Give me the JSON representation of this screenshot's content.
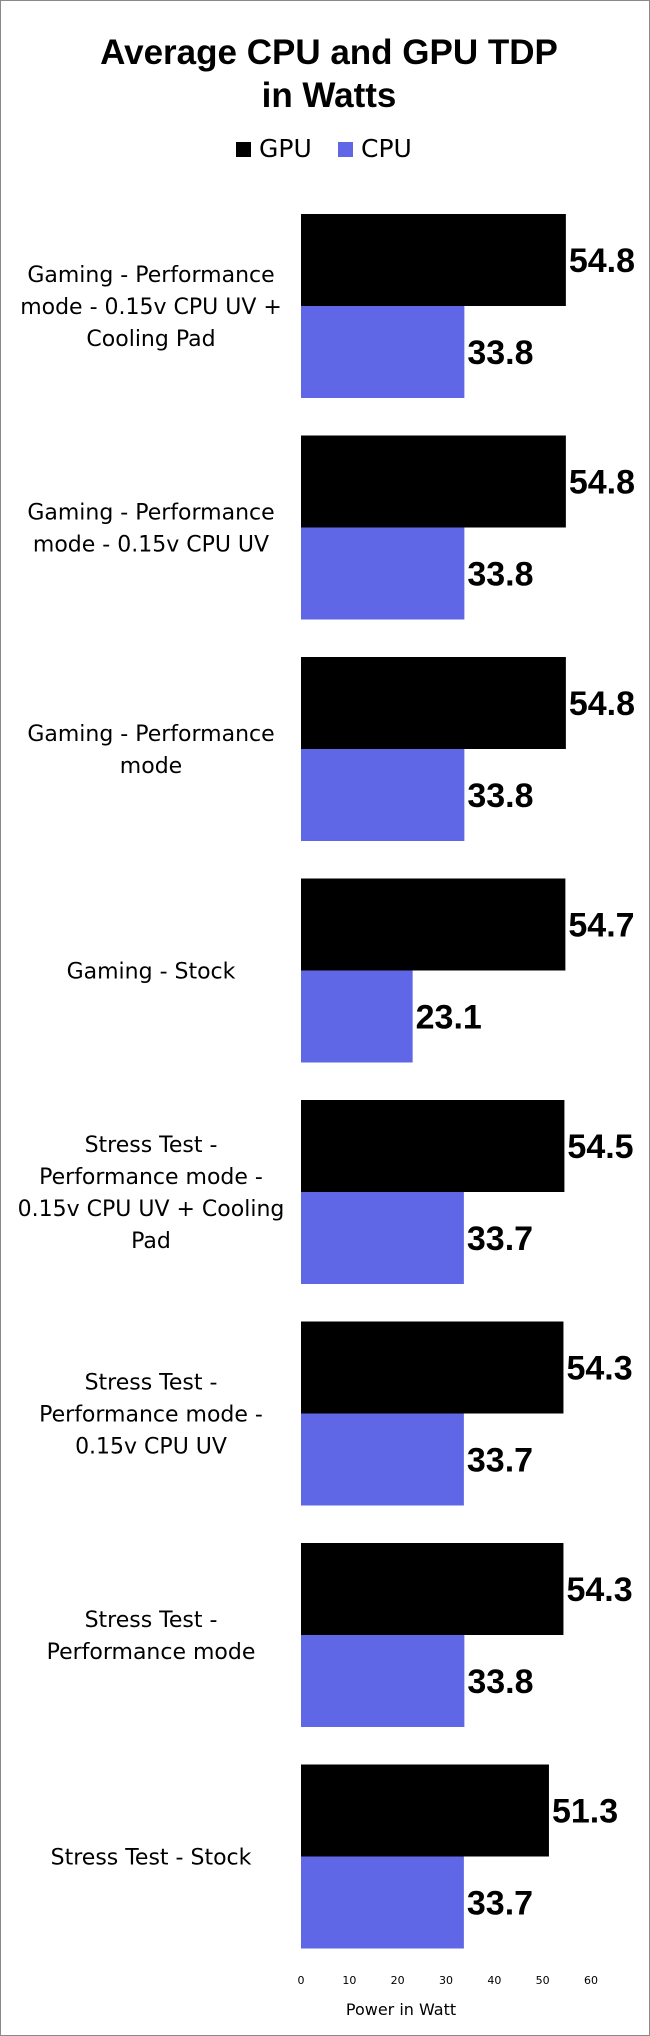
{
  "chart_data": {
    "type": "bar",
    "orientation": "horizontal",
    "title_lines": [
      "Average CPU and GPU TDP",
      "in Watts"
    ],
    "xlabel": "Power in Watt",
    "ylabel": "",
    "xlim": [
      0,
      60
    ],
    "xticks": [
      0,
      10,
      20,
      30,
      40,
      50,
      60
    ],
    "grid": false,
    "legend_position": "top",
    "categories": [
      [
        "Gaming - Performance",
        "mode - 0.15v CPU UV +",
        "Cooling Pad"
      ],
      [
        "Gaming - Performance",
        "mode - 0.15v CPU UV"
      ],
      [
        "Gaming - Performance",
        "mode"
      ],
      [
        "Gaming - Stock"
      ],
      [
        "Stress Test -",
        "Performance mode -",
        "0.15v CPU UV + Cooling",
        "Pad"
      ],
      [
        "Stress Test -",
        "Performance mode -",
        "0.15v CPU UV"
      ],
      [
        "Stress Test -",
        "Performance mode"
      ],
      [
        "Stress Test - Stock"
      ]
    ],
    "series": [
      {
        "name": "GPU",
        "color": "#000000",
        "values": [
          54.8,
          54.8,
          54.8,
          54.7,
          54.5,
          54.3,
          54.3,
          51.3
        ]
      },
      {
        "name": "CPU",
        "color": "#5f67e6",
        "values": [
          33.8,
          33.8,
          33.8,
          23.1,
          33.7,
          33.7,
          33.8,
          33.7
        ]
      }
    ]
  }
}
